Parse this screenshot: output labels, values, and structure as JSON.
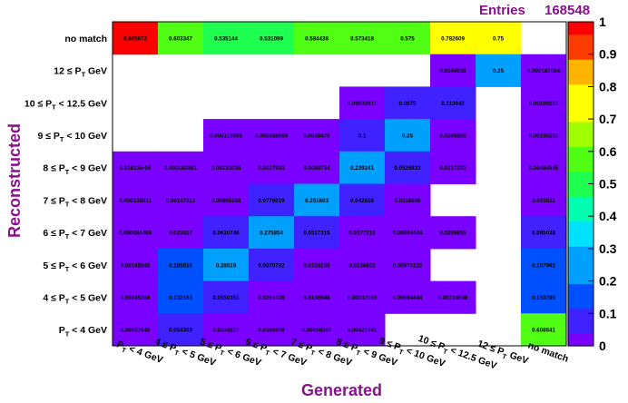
{
  "stats": {
    "entries_label": "Entries",
    "entries_value": "168548"
  },
  "chart_data": {
    "type": "heatmap",
    "xlabel": "Generated",
    "ylabel": "Reconstructed",
    "x_categories": [
      "P_T < 4 GeV",
      "4 ≤ P_T < 5 GeV",
      "5 ≤ P_T < 6 GeV",
      "6 ≤ P_T < 7 GeV",
      "7 ≤ P_T < 8 GeV",
      "8 ≤ P_T < 9 GeV",
      "9 ≤ P_T < 10 GeV",
      "10 ≤ P_T < 12.5 GeV",
      "12 ≤ P_T GeV",
      "no match"
    ],
    "y_categories": [
      "P_T < 4 GeV",
      "4 ≤ P_T < 5 GeV",
      "5 ≤ P_T < 6 GeV",
      "6 ≤ P_T < 7 GeV",
      "7 ≤ P_T < 8 GeV",
      "8 ≤ P_T < 9 GeV",
      "9 ≤ P_T < 10 GeV",
      "10 ≤ P_T < 12.5 GeV",
      "12 ≤ P_T GeV",
      "no match"
    ],
    "cells": [
      {
        "x": 0,
        "y": 9,
        "value": 0.965672,
        "label": "0.965672"
      },
      {
        "x": 1,
        "y": 9,
        "value": 0.603347,
        "label": "0.603347"
      },
      {
        "x": 2,
        "y": 9,
        "value": 0.535144,
        "label": "0.535144"
      },
      {
        "x": 3,
        "y": 9,
        "value": 0.531099,
        "label": "0.531099"
      },
      {
        "x": 4,
        "y": 9,
        "value": 0.584438,
        "label": "0.584438"
      },
      {
        "x": 5,
        "y": 9,
        "value": 0.573418,
        "label": "0.573418"
      },
      {
        "x": 6,
        "y": 9,
        "value": 0.575,
        "label": "0.575"
      },
      {
        "x": 7,
        "y": 9,
        "value": 0.782609,
        "label": "0.782609"
      },
      {
        "x": 8,
        "y": 9,
        "value": 0.75,
        "label": "0.75"
      },
      {
        "x": 7,
        "y": 8,
        "value": 0.0144928,
        "label": "0.0144928"
      },
      {
        "x": 8,
        "y": 8,
        "value": 0.25,
        "label": "0.25"
      },
      {
        "x": 9,
        "y": 8,
        "value": 0.000167084,
        "label": "0.000167084"
      },
      {
        "x": 5,
        "y": 7,
        "value": 0.00632911,
        "label": "0.00632911"
      },
      {
        "x": 6,
        "y": 7,
        "value": 0.0875,
        "label": "0.0875"
      },
      {
        "x": 7,
        "y": 7,
        "value": 0.113942,
        "label": "0.113942"
      },
      {
        "x": 9,
        "y": 7,
        "value": 0.00100251,
        "label": "0.00100251"
      },
      {
        "x": 2,
        "y": 6,
        "value": 0.000110865,
        "label": "0.000110865"
      },
      {
        "x": 3,
        "y": 6,
        "value": 0.000558659,
        "label": "0.000558659"
      },
      {
        "x": 4,
        "y": 6,
        "value": 0.0038476,
        "label": "0.0038476"
      },
      {
        "x": 5,
        "y": 6,
        "value": 0.1,
        "label": "0.1"
      },
      {
        "x": 6,
        "y": 6,
        "value": 0.25,
        "label": "0.25"
      },
      {
        "x": 7,
        "y": 6,
        "value": 0.0289855,
        "label": "0.0289855"
      },
      {
        "x": 9,
        "y": 6,
        "value": 0.00100251,
        "label": "0.00100251"
      },
      {
        "x": 0,
        "y": 5,
        "value": 3.91813e-05,
        "label": "3.91813e-05"
      },
      {
        "x": 1,
        "y": 5,
        "value": 0.000183891,
        "label": "0.000183891"
      },
      {
        "x": 2,
        "y": 5,
        "value": 0.00133038,
        "label": "0.00133038"
      },
      {
        "x": 3,
        "y": 5,
        "value": 0.0027933,
        "label": "0.0027933"
      },
      {
        "x": 4,
        "y": 5,
        "value": 0.0088754,
        "label": "0.0088754"
      },
      {
        "x": 5,
        "y": 5,
        "value": 0.239241,
        "label": "0.239241"
      },
      {
        "x": 6,
        "y": 5,
        "value": 0.0526833,
        "label": "0.0526833"
      },
      {
        "x": 7,
        "y": 5,
        "value": 0.0217391,
        "label": "0.0217391"
      },
      {
        "x": 9,
        "y": 5,
        "value": 0.00484545,
        "label": "0.00484545"
      },
      {
        "x": 0,
        "y": 4,
        "value": 0.000138911,
        "label": "0.000138911"
      },
      {
        "x": 1,
        "y": 4,
        "value": 0.00147113,
        "label": "0.00147113"
      },
      {
        "x": 2,
        "y": 4,
        "value": 0.00665188,
        "label": "0.00665188"
      },
      {
        "x": 3,
        "y": 4,
        "value": 0.0776019,
        "label": "0.0776019"
      },
      {
        "x": 4,
        "y": 4,
        "value": 0.251603,
        "label": "0.251603"
      },
      {
        "x": 5,
        "y": 4,
        "value": 0.042616,
        "label": "0.042616"
      },
      {
        "x": 6,
        "y": 4,
        "value": 0.0118056,
        "label": "0.0118056"
      },
      {
        "x": 9,
        "y": 4,
        "value": 0.015511,
        "label": "0.015511"
      },
      {
        "x": 0,
        "y": 3,
        "value": 0.000484469,
        "label": "0.000484469"
      },
      {
        "x": 1,
        "y": 3,
        "value": 0.023017,
        "label": "0.023017"
      },
      {
        "x": 2,
        "y": 3,
        "value": 0.0630746,
        "label": "0.0630746"
      },
      {
        "x": 3,
        "y": 3,
        "value": 0.275854,
        "label": "0.275854"
      },
      {
        "x": 4,
        "y": 3,
        "value": 0.0517315,
        "label": "0.0517315"
      },
      {
        "x": 5,
        "y": 3,
        "value": 0.0177215,
        "label": "0.0177215"
      },
      {
        "x": 6,
        "y": 3,
        "value": 0.00694444,
        "label": "0.00694444"
      },
      {
        "x": 7,
        "y": 3,
        "value": 0.0289855,
        "label": "0.0289855"
      },
      {
        "x": 9,
        "y": 3,
        "value": 0.080038,
        "label": "0.080038"
      },
      {
        "x": 0,
        "y": 2,
        "value": 0.00185545,
        "label": "0.00185545"
      },
      {
        "x": 1,
        "y": 2,
        "value": 0.185515,
        "label": "0.185515"
      },
      {
        "x": 2,
        "y": 2,
        "value": 0.28519,
        "label": "0.28519"
      },
      {
        "x": 3,
        "y": 2,
        "value": 0.0670782,
        "label": "0.0670782"
      },
      {
        "x": 4,
        "y": 2,
        "value": 0.0158256,
        "label": "0.0158256"
      },
      {
        "x": 5,
        "y": 2,
        "value": 0.0136862,
        "label": "0.0136862"
      },
      {
        "x": 6,
        "y": 2,
        "value": 0.00972222,
        "label": "0.00972222"
      },
      {
        "x": 9,
        "y": 2,
        "value": 0.157992,
        "label": "0.157992"
      },
      {
        "x": 0,
        "y": 1,
        "value": 0.00245388,
        "label": "0.00245388"
      },
      {
        "x": 1,
        "y": 1,
        "value": 0.132163,
        "label": "0.132163"
      },
      {
        "x": 2,
        "y": 1,
        "value": 0.0550351,
        "label": "0.0550351"
      },
      {
        "x": 3,
        "y": 1,
        "value": 0.0261328,
        "label": "0.0261328"
      },
      {
        "x": 4,
        "y": 1,
        "value": 0.0136948,
        "label": "0.0136948"
      },
      {
        "x": 5,
        "y": 1,
        "value": 0.00337553,
        "label": "0.00337553"
      },
      {
        "x": 6,
        "y": 1,
        "value": 0.00694444,
        "label": "0.00694444"
      },
      {
        "x": 7,
        "y": 1,
        "value": 0.00724638,
        "label": "0.00724638"
      },
      {
        "x": 9,
        "y": 1,
        "value": 0.150799,
        "label": "0.150799"
      },
      {
        "x": 0,
        "y": 0,
        "value": 0.00937645,
        "label": "0.00937645"
      },
      {
        "x": 1,
        "y": 0,
        "value": 0.054303,
        "label": "0.054303"
      },
      {
        "x": 2,
        "y": 0,
        "value": 0.0334527,
        "label": "0.0334527"
      },
      {
        "x": 3,
        "y": 0,
        "value": 0.0165999,
        "label": "0.0165999"
      },
      {
        "x": 4,
        "y": 0,
        "value": 0.00958387,
        "label": "0.00958387"
      },
      {
        "x": 5,
        "y": 0,
        "value": 0.00421941,
        "label": "0.00421941"
      },
      {
        "x": 9,
        "y": 0,
        "value": 0.608641,
        "label": "0.608641"
      }
    ],
    "colorbar": {
      "range": [
        0,
        1
      ],
      "ticks": [
        "0",
        "0.1",
        "0.2",
        "0.3",
        "0.4",
        "0.5",
        "0.6",
        "0.7",
        "0.8",
        "0.9",
        "1"
      ]
    },
    "colors": {
      "title": "#8b0f8f",
      "palette": [
        "#7a00ff",
        "#3f22ff",
        "#0050ff",
        "#00a0ff",
        "#00e0ff",
        "#00ffb0",
        "#1eff50",
        "#50ff14",
        "#a0ff00",
        "#ffff00",
        "#ffb400",
        "#ff3c00",
        "#ff0000"
      ]
    }
  }
}
